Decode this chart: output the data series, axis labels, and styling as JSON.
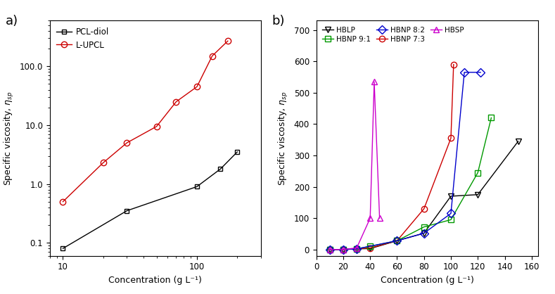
{
  "panel_a": {
    "pcl_diol": {
      "x": [
        10,
        30,
        100,
        150,
        200
      ],
      "y": [
        0.08,
        0.35,
        0.9,
        1.8,
        3.5
      ],
      "color": "black",
      "marker": "s",
      "label": "PCL-diol",
      "markersize": 5,
      "fillstyle": "none"
    },
    "l_upcl": {
      "x": [
        10,
        20,
        30,
        50,
        70,
        100,
        130,
        170
      ],
      "y": [
        0.5,
        2.3,
        5.0,
        9.5,
        25,
        45,
        150,
        270
      ],
      "color": "#cc0000",
      "marker": "o",
      "label": "L-UPCL",
      "markersize": 6,
      "fillstyle": "none"
    },
    "xlabel": "Concentration (g L⁻¹)",
    "ylabel": "Specific viscosity, $\\eta_{sp}$",
    "xlim": [
      8,
      300
    ],
    "ylim": [
      0.06,
      600
    ],
    "xticks": [
      10,
      100
    ],
    "yticks": [
      0.1,
      1,
      10,
      100
    ],
    "title": "a)"
  },
  "panel_b": {
    "hblp": {
      "x": [
        10,
        20,
        30,
        40,
        60,
        80,
        100,
        120,
        150
      ],
      "y": [
        0,
        0,
        2,
        3,
        28,
        52,
        170,
        175,
        345
      ],
      "color": "black",
      "marker": "v",
      "label": "HBLP",
      "markersize": 6,
      "fillstyle": "none"
    },
    "hbnp_73": {
      "x": [
        10,
        20,
        30,
        40,
        60,
        80,
        100,
        102
      ],
      "y": [
        0,
        0,
        2,
        5,
        28,
        130,
        355,
        590
      ],
      "color": "#cc0000",
      "marker": "o",
      "label": "HBNP 7:3",
      "markersize": 6,
      "fillstyle": "none"
    },
    "hbnp_91": {
      "x": [
        10,
        20,
        30,
        40,
        60,
        80,
        100,
        120,
        130
      ],
      "y": [
        0,
        0,
        2,
        10,
        28,
        72,
        95,
        245,
        420
      ],
      "color": "#009900",
      "marker": "s",
      "label": "HBNP 9:1",
      "markersize": 6,
      "fillstyle": "none"
    },
    "hbnp_82": {
      "x": [
        10,
        20,
        30,
        60,
        80,
        100,
        110,
        122
      ],
      "y": [
        0,
        0,
        2,
        28,
        52,
        115,
        565,
        565
      ],
      "color": "#0000cc",
      "marker": "D",
      "label": "HBNP 8:2",
      "markersize": 6,
      "fillstyle": "none"
    },
    "hbsp": {
      "x": [
        10,
        20,
        30,
        40,
        43,
        47
      ],
      "y": [
        0,
        0,
        5,
        100,
        535,
        100
      ],
      "color": "#cc00cc",
      "marker": "^",
      "label": "HBSP",
      "markersize": 6,
      "fillstyle": "none"
    },
    "xlabel": "Concentration (g L⁻¹)",
    "ylabel": "Specific viscosity, $\\eta_{sp}$",
    "xlim": [
      0,
      165
    ],
    "ylim": [
      -20,
      730
    ],
    "yticks": [
      0,
      100,
      200,
      300,
      400,
      500,
      600,
      700
    ],
    "xticks": [
      0,
      20,
      40,
      60,
      80,
      100,
      120,
      140,
      160
    ],
    "title": "b)"
  },
  "fig_bg": "#f0f0f0"
}
